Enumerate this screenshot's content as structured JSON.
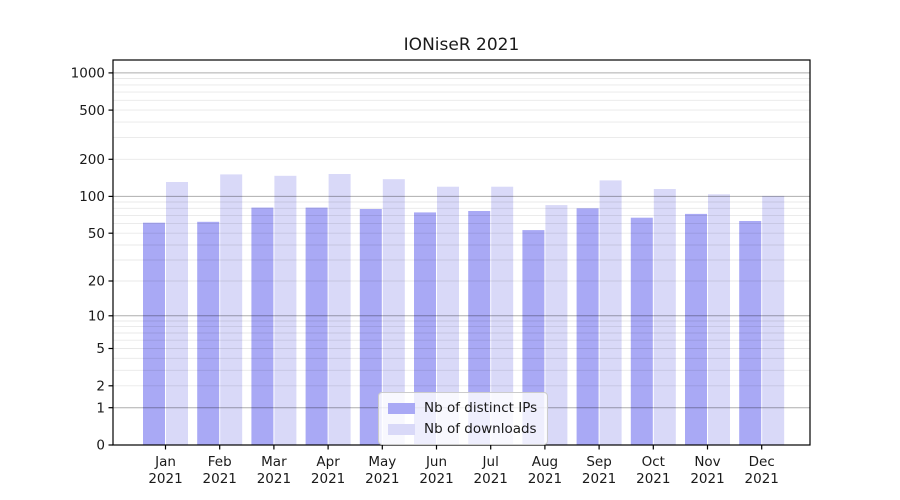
{
  "figure": {
    "background": "#ffffff",
    "axes_box_color": "#000000",
    "major_grid_color": "rgba(0,0,0,0.32)",
    "minor_grid_color": "rgba(0,0,0,0.09)"
  },
  "chart_data": {
    "type": "bar",
    "title": "IONiseR 2021",
    "categories": [
      "Jan",
      "Feb",
      "Mar",
      "Apr",
      "May",
      "Jun",
      "Jul",
      "Aug",
      "Sep",
      "Oct",
      "Nov",
      "Dec"
    ],
    "year_label": "2021",
    "series": [
      {
        "name": "Nb of distinct IPs",
        "color": "#a9a9f5",
        "values": [
          61,
          62,
          81,
          81,
          79,
          74,
          76,
          53,
          80,
          67,
          72,
          63
        ]
      },
      {
        "name": "Nb of downloads",
        "color": "#d9d9f8",
        "values": [
          131,
          151,
          147,
          152,
          138,
          120,
          120,
          85,
          135,
          115,
          104,
          101
        ]
      }
    ],
    "xlabel": "",
    "ylabel": "",
    "yscale": "log1p",
    "ylim": [
      0,
      1270
    ],
    "yticks": [
      0,
      1,
      2,
      5,
      10,
      20,
      50,
      100,
      200,
      500,
      1000
    ],
    "major_gridlines": [
      1,
      10,
      100,
      1000
    ],
    "grid": "on",
    "legend_position": "lower-center"
  }
}
